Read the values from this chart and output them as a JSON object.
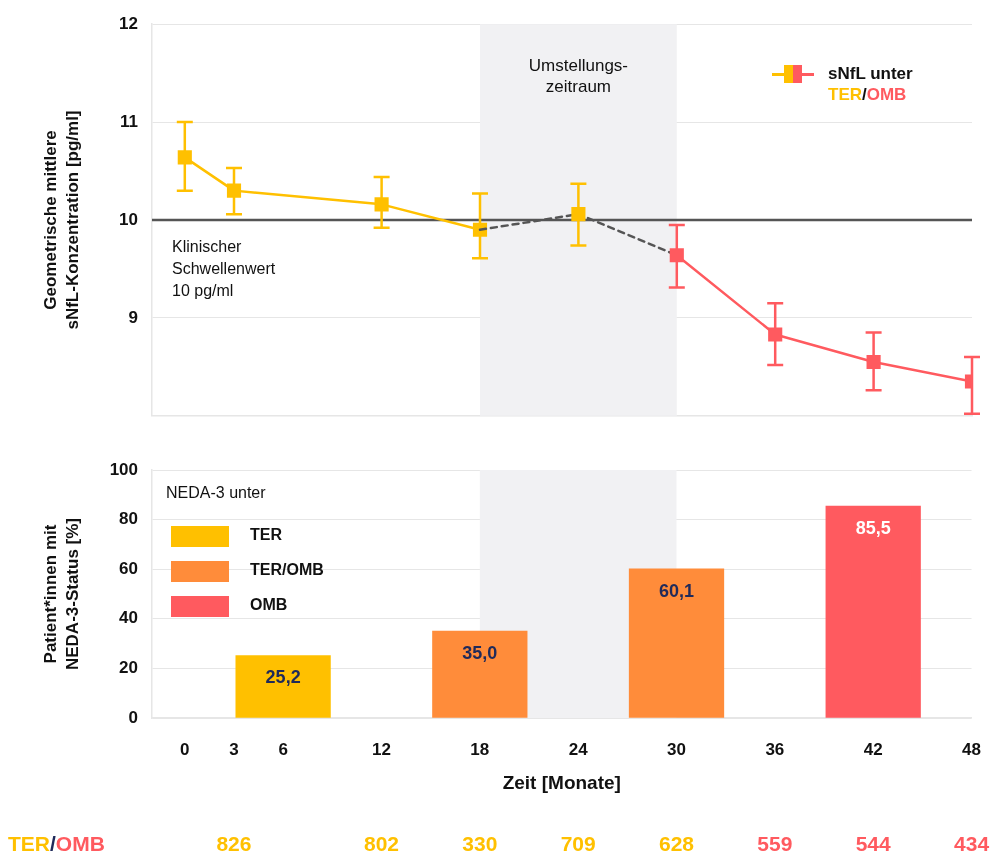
{
  "chart_data": [
    {
      "type": "line",
      "ylabel": "Geometrische mittlere\nsNfL-Konzentration [pg/ml]",
      "legend_title": "sNfL unter",
      "annotations": [
        "/"
      ],
      "legend": "top right",
      "tick_labels": "y",
      "grid": "y",
      "marker": "square",
      "xlim": [
        -2,
        48
      ],
      "xticks": [
        0,
        3,
        6,
        12,
        18,
        24,
        30,
        36,
        42,
        48
      ],
      "ylim": [
        8,
        12
      ],
      "yticks": [
        9,
        10,
        11,
        12
      ],
      "series": [
        {
          "name": "TER",
          "color": "#ffc000",
          "x": [
            0,
            3,
            12,
            18
          ],
          "values": [
            10.64,
            10.3,
            10.16,
            9.9
          ],
          "errors": [
            [
              10.3,
              11.0
            ],
            [
              10.06,
              10.53
            ],
            [
              9.92,
              10.44
            ],
            [
              9.61,
              10.27
            ]
          ]
        },
        {
          "type": "line",
          "color": "#555555",
          "line_style": "dashed",
          "marker": "none",
          "x": [
            18,
            24,
            30
          ],
          "values": [
            9.9,
            10.06,
            9.64
          ]
        },
        {
          "type": "scatter",
          "color": "#ffc000",
          "x": [
            24
          ],
          "values": [
            10.06
          ],
          "errors": [
            [
              9.74,
              10.37
            ]
          ]
        },
        {
          "name": "OMB",
          "color": "#ff5a5f",
          "x": [
            30,
            36,
            42,
            48
          ],
          "values": [
            9.64,
            8.83,
            8.55,
            8.35
          ],
          "errors": [
            [
              9.31,
              9.95
            ],
            [
              8.52,
              9.15
            ],
            [
              8.26,
              8.85
            ],
            [
              8.02,
              8.6
            ]
          ]
        }
      ],
      "ref_lines": [
        {
          "axis": "y",
          "value": 10,
          "label": "Klinischer\nSchwellenwert\n10 pg/ml",
          "color": "#555555"
        }
      ],
      "bands": [
        {
          "axis": "x",
          "from": 18,
          "to": 30,
          "label": "Umstellungs-\nzeitraum",
          "color": "#f1f1f3"
        }
      ]
    },
    {
      "type": "bar",
      "xlabel": "Zeit [Monate]",
      "ylabel": "Patient*innen mit\nNEDA-3-Status [%]",
      "legend_title": "NEDA-3 unter",
      "legend": "top left",
      "grid": "y",
      "x": [
        6,
        18,
        30,
        42
      ],
      "xlim": [
        -2,
        48
      ],
      "xticks": [
        0,
        3,
        6,
        12,
        18,
        24,
        30,
        36,
        42,
        48
      ],
      "ylim": [
        0,
        100
      ],
      "yticks": [
        0,
        20,
        40,
        60,
        80,
        100
      ],
      "annotations": [
        "TER/OMB",
        "826",
        "802",
        "330",
        "709",
        "628",
        "559",
        "544",
        "434"
      ],
      "series": [
        {
          "name": "TER",
          "color": "#ffc000",
          "values": [
            25.2,
            null,
            null,
            null
          ],
          "value_labels": [
            "25,2",
            null,
            null,
            null
          ]
        },
        {
          "name": "TER/OMB",
          "color": "#ff8c3a",
          "values": [
            null,
            35.0,
            60.1,
            null
          ],
          "value_labels": [
            null,
            "35,0",
            "60,1",
            null
          ]
        },
        {
          "name": "OMB",
          "color": "#ff5a5f",
          "values": [
            null,
            null,
            null,
            85.5
          ],
          "value_labels": [
            null,
            null,
            null,
            "85,5"
          ]
        }
      ],
      "bands": [
        {
          "axis": "x",
          "from": 18,
          "to": 30,
          "color": "#f1f1f3"
        }
      ]
    }
  ]
}
